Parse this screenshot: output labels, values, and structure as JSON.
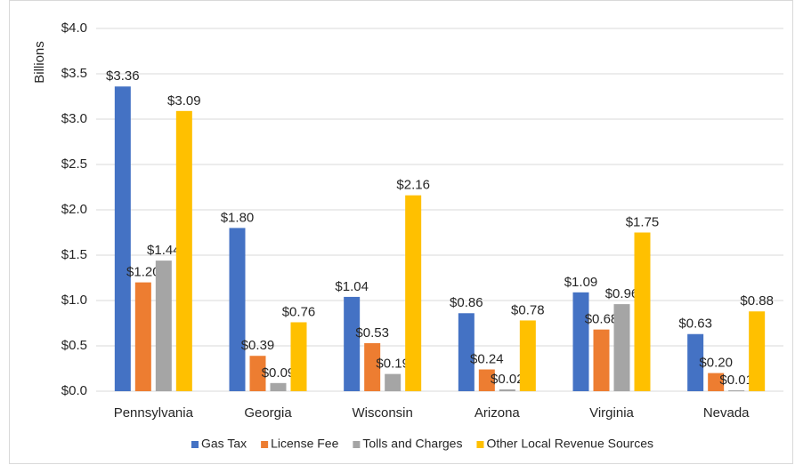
{
  "chart_data": {
    "type": "bar",
    "y_axis_label": "Billions",
    "categories": [
      "Pennsylvania",
      "Georgia",
      "Wisconsin",
      "Arizona",
      "Virginia",
      "Nevada"
    ],
    "series": [
      {
        "name": "Gas Tax",
        "color": "#4472c4",
        "values": [
          3.36,
          1.8,
          1.04,
          0.86,
          1.09,
          0.63
        ],
        "value_labels": [
          "$3.36",
          "$1.80",
          "$1.04",
          "$0.86",
          "$1.09",
          "$0.63"
        ]
      },
      {
        "name": "License Fee",
        "color": "#ed7d31",
        "values": [
          1.2,
          0.39,
          0.53,
          0.24,
          0.68,
          0.2
        ],
        "value_labels": [
          "$1.20",
          "$0.39",
          "$0.53",
          "$0.24",
          "$0.68",
          "$0.20"
        ]
      },
      {
        "name": "Tolls and Charges",
        "color": "#a5a5a5",
        "values": [
          1.44,
          0.09,
          0.19,
          0.02,
          0.96,
          0.01
        ],
        "value_labels": [
          "$1.44",
          "$0.09",
          "$0.19",
          "$0.02",
          "$0.96",
          "$0.01"
        ]
      },
      {
        "name": "Other Local Revenue Sources",
        "color": "#ffc000",
        "values": [
          3.09,
          0.76,
          2.16,
          0.78,
          1.75,
          0.88
        ],
        "value_labels": [
          "$3.09",
          "$0.76",
          "$2.16",
          "$0.78",
          "$1.75",
          "$0.88"
        ]
      }
    ],
    "ylim": [
      0,
      4
    ],
    "yticks": [
      {
        "value": 0,
        "label": "$0.0"
      },
      {
        "value": 0.5,
        "label": "$0.5"
      },
      {
        "value": 1,
        "label": "$1.0"
      },
      {
        "value": 1.5,
        "label": "$1.5"
      },
      {
        "value": 2,
        "label": "$2.0"
      },
      {
        "value": 2.5,
        "label": "$2.5"
      },
      {
        "value": 3,
        "label": "$3.0"
      },
      {
        "value": 3.5,
        "label": "$3.5"
      },
      {
        "value": 4,
        "label": "$4.0"
      }
    ],
    "grid": true,
    "legend": "bottom"
  }
}
